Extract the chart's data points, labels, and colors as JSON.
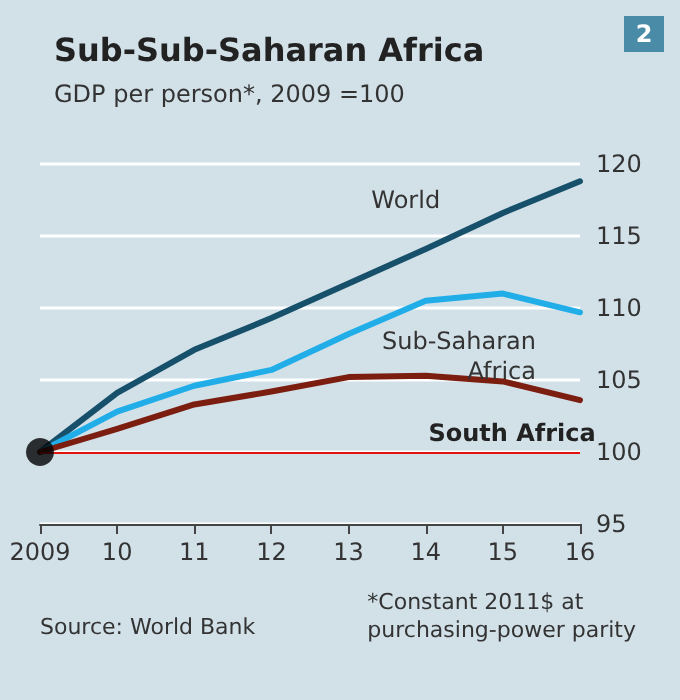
{
  "chart_data": {
    "type": "line",
    "title": "Sub-Sub-Saharan Africa",
    "subtitle": "GDP per person*, 2009 =100",
    "categories": [
      "2009",
      "10",
      "11",
      "12",
      "13",
      "14",
      "15",
      "16"
    ],
    "series": [
      {
        "name": "World",
        "color": "#17506b",
        "values": [
          100,
          104.1,
          107.1,
          109.3,
          111.7,
          114.1,
          116.6,
          118.8
        ]
      },
      {
        "name": "Sub-Saharan Africa",
        "color": "#21aee8",
        "values": [
          100,
          102.8,
          104.6,
          105.7,
          108.2,
          110.5,
          111.0,
          109.7
        ]
      },
      {
        "name": "South Africa",
        "color": "#7b1e10",
        "values": [
          100,
          101.6,
          103.3,
          104.2,
          105.2,
          105.3,
          104.9,
          103.6
        ]
      },
      {
        "type": "scatter",
        "marker": "circle",
        "color": "#000000",
        "values": [
          100,
          null,
          null,
          null,
          null,
          null,
          null,
          null
        ]
      }
    ],
    "ylim": [
      95,
      120
    ],
    "yticks": [
      95,
      100,
      105,
      110,
      115,
      120
    ],
    "grid": "y",
    "legend": false,
    "marker": "none",
    "line_style": "solid",
    "ref_lines": [
      {
        "axis": "y",
        "value": 100,
        "color": "#e3120b"
      }
    ],
    "annotations": [
      "2",
      "Source: World Bank",
      "*Constant 2011$ at\npurchasing-power parity"
    ]
  }
}
